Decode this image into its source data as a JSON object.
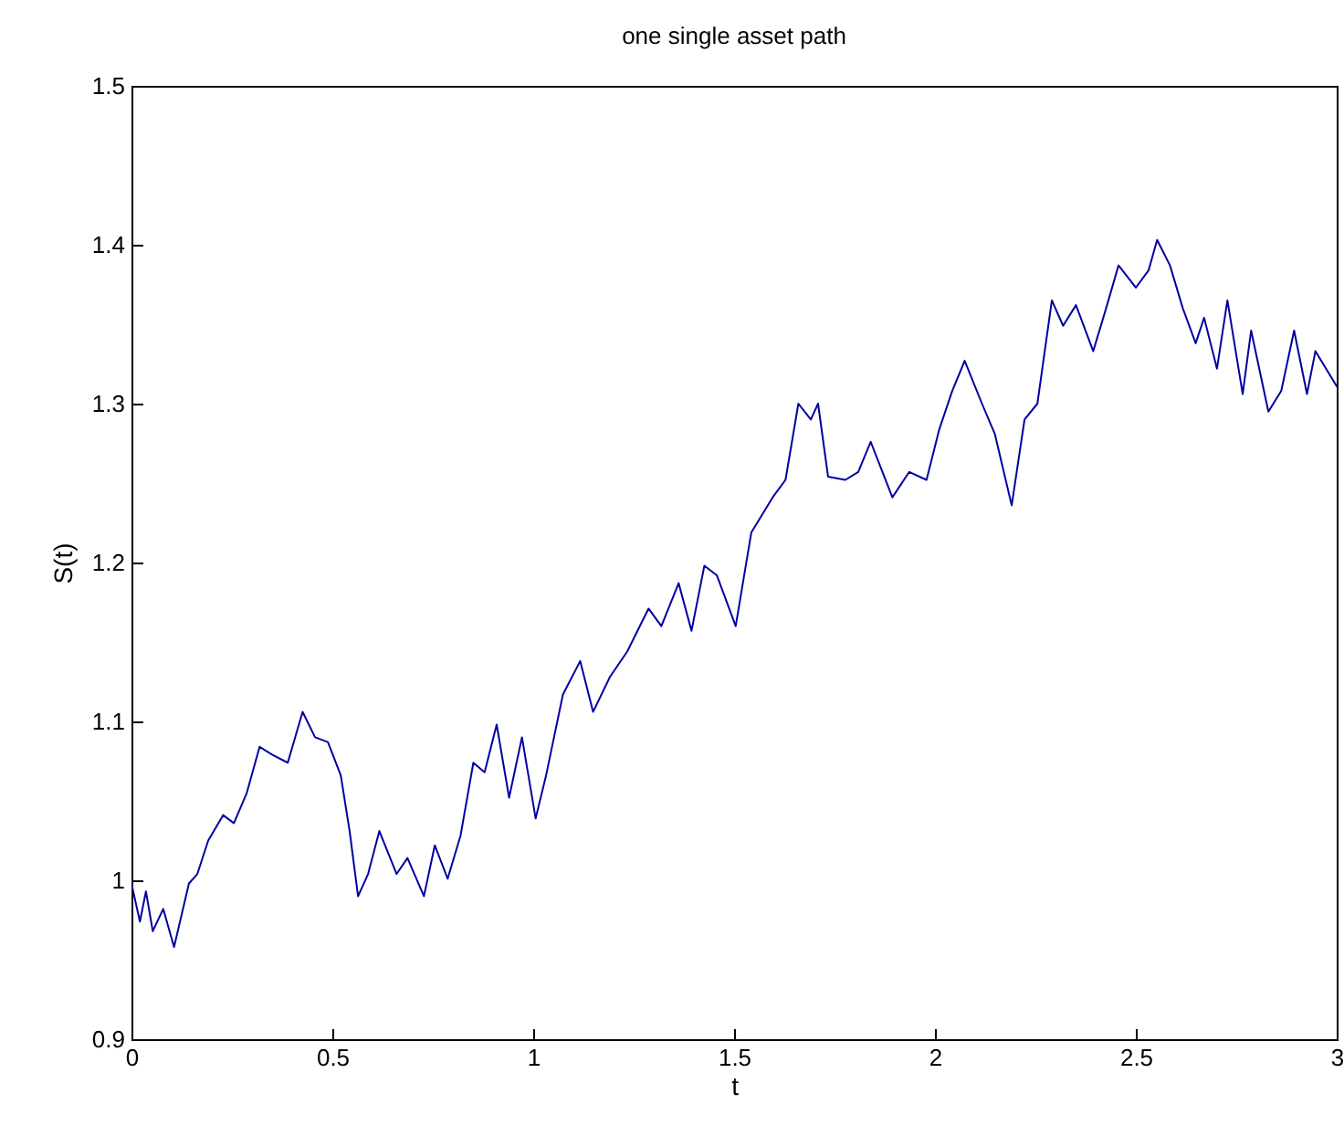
{
  "chart_data": {
    "type": "line",
    "title": "one single asset path",
    "xlabel": "t",
    "ylabel": "S(t)",
    "xlim": [
      0,
      3
    ],
    "ylim": [
      0.9,
      1.5
    ],
    "xticks": [
      0,
      0.5,
      1,
      1.5,
      2,
      2.5,
      3
    ],
    "yticks": [
      0.9,
      1,
      1.1,
      1.2,
      1.3,
      1.4,
      1.5
    ],
    "grid": false,
    "series": [
      {
        "color": "#0000a0",
        "x": [
          0,
          0.021,
          0.036,
          0.053,
          0.079,
          0.106,
          0.143,
          0.164,
          0.191,
          0.228,
          0.255,
          0.287,
          0.319,
          0.351,
          0.389,
          0.426,
          0.457,
          0.489,
          0.521,
          0.543,
          0.564,
          0.589,
          0.617,
          0.66,
          0.687,
          0.728,
          0.755,
          0.787,
          0.819,
          0.851,
          0.879,
          0.909,
          0.94,
          0.972,
          1.006,
          1.032,
          1.074,
          1.117,
          1.149,
          1.191,
          1.234,
          1.287,
          1.319,
          1.362,
          1.394,
          1.426,
          1.457,
          1.504,
          1.543,
          1.596,
          1.628,
          1.66,
          1.691,
          1.709,
          1.734,
          1.777,
          1.809,
          1.84,
          1.894,
          1.936,
          1.979,
          2.011,
          2.043,
          2.074,
          2.117,
          2.149,
          2.191,
          2.223,
          2.255,
          2.291,
          2.319,
          2.351,
          2.394,
          2.426,
          2.457,
          2.5,
          2.532,
          2.553,
          2.585,
          2.617,
          2.649,
          2.67,
          2.702,
          2.728,
          2.766,
          2.787,
          2.83,
          2.862,
          2.894,
          2.926,
          2.947,
          3
        ],
        "values": [
          0.998,
          0.974,
          0.993,
          0.968,
          0.982,
          0.958,
          0.998,
          1.004,
          1.025,
          1.041,
          1.036,
          1.055,
          1.084,
          1.079,
          1.074,
          1.106,
          1.09,
          1.087,
          1.066,
          1.031,
          0.99,
          1.004,
          1.031,
          1.004,
          1.014,
          0.99,
          1.022,
          1.001,
          1.028,
          1.074,
          1.068,
          1.098,
          1.052,
          1.09,
          1.039,
          1.066,
          1.117,
          1.138,
          1.106,
          1.128,
          1.144,
          1.171,
          1.16,
          1.187,
          1.157,
          1.198,
          1.192,
          1.16,
          1.219,
          1.241,
          1.252,
          1.3,
          1.29,
          1.3,
          1.254,
          1.252,
          1.257,
          1.276,
          1.241,
          1.257,
          1.252,
          1.284,
          1.308,
          1.327,
          1.3,
          1.281,
          1.236,
          1.29,
          1.3,
          1.365,
          1.349,
          1.362,
          1.333,
          1.36,
          1.387,
          1.373,
          1.384,
          1.403,
          1.387,
          1.36,
          1.338,
          1.354,
          1.322,
          1.365,
          1.306,
          1.346,
          1.295,
          1.308,
          1.346,
          1.306,
          1.333,
          1.311
        ]
      }
    ]
  }
}
